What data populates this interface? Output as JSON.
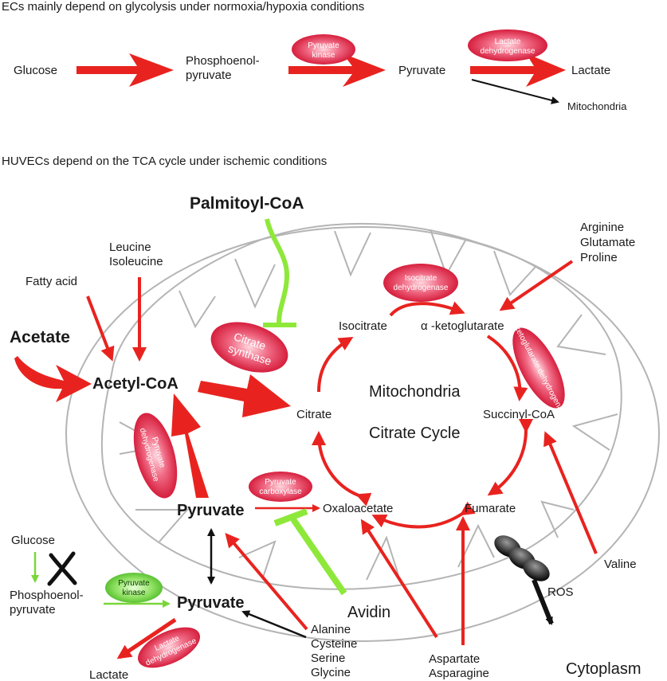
{
  "section1": {
    "title": "ECs mainly depend on glycolysis under normoxia/hypoxia conditions",
    "glucose": "Glucose",
    "pep_line1": "Phosphoenol-",
    "pep_line2": "pyruvate",
    "pyruvate": "Pyruvate",
    "lactate": "Lactate",
    "mitochondria": "Mitochondria",
    "enzyme_pk_line1": "Pyruvate",
    "enzyme_pk_line2": "kinase",
    "enzyme_ldh_line1": "Lactate",
    "enzyme_ldh_line2": "dehydrogenase"
  },
  "section2": {
    "title": "HUVECs depend on the TCA cycle under ischemic conditions",
    "palmitoyl": "Palmitoyl-CoA",
    "leucine": "Leucine",
    "isoleucine": "Isoleucine",
    "fatty_acid": "Fatty acid",
    "acetate": "Acetate",
    "acetyl_coa": "Acetyl-CoA",
    "citrate_synthase_line1": "Citrate",
    "citrate_synthase_line2": "synthase",
    "isocitrate": "Isocitrate",
    "akg": "α -ketoglutarate",
    "idh_line1": "Isocitrate",
    "idh_line2": "dehydrogenase",
    "akgdh": "α -ketoglutarate dehydrogenase",
    "arginine": "Arginine",
    "glutamate": "Glutamate",
    "proline": "Proline",
    "mitochondria": "Mitochondria",
    "citrate_cycle": "Citrate Cycle",
    "citrate": "Citrate",
    "succinyl_coa": "Succinyl-CoA",
    "pdh_line1": "Pyruvate",
    "pdh_line2": "dehydrogenase",
    "pyruvate_mito": "Pyruvate",
    "pc_line1": "Pyruvate",
    "pc_line2": "carboxylase",
    "oxaloacetate": "Oxaloacetate",
    "fumarate": "Fumarate",
    "glucose": "Glucose",
    "pep_line1": "Phosphoenol-",
    "pep_line2": "pyruvate",
    "pk_line1": "Pyruvate",
    "pk_line2": "kinase",
    "pyruvate_cyto": "Pyruvate",
    "avidin": "Avidin",
    "alanine": "Alanine",
    "cysteine": "Cysteine",
    "serine": "Serine",
    "glycine": "Glycine",
    "aspartate": "Aspartate",
    "asparagine": "Asparagine",
    "ros": "ROS",
    "valine": "Valine",
    "cytoplasm": "Cytoplasm",
    "lactate": "Lactate",
    "ldh_line1": "Lactate",
    "ldh_line2": "dehydrogenase"
  },
  "colors": {
    "red_arrow": "#e8231f",
    "inhibit_green": "#8ee83a",
    "enzyme_red": "#e0203a",
    "enzyme_green": "#6ed436",
    "membrane": "#b4b4b4"
  }
}
